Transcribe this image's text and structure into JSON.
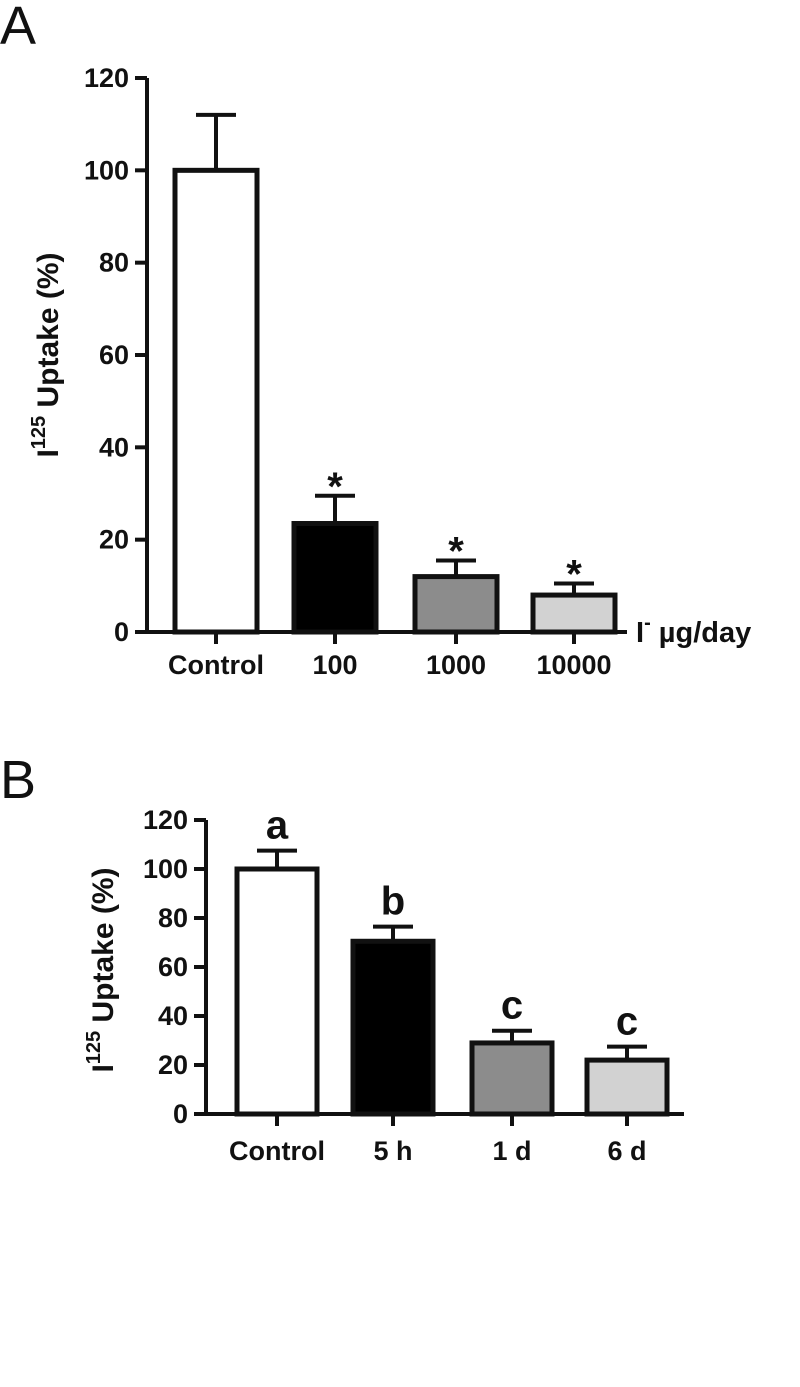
{
  "chart_data": [
    {
      "panel": "A",
      "type": "bar",
      "ylabel": {
        "base": "I",
        "sup": "125",
        "rest": " Uptake (%)"
      },
      "xunit": {
        "base": "I",
        "sup": "-",
        "rest": " µg/day"
      },
      "categories": [
        "Control",
        "100",
        "1000",
        "10000"
      ],
      "values": [
        100,
        23.5,
        12,
        8
      ],
      "errors": [
        12,
        6,
        3.5,
        2.5
      ],
      "annotations": [
        "",
        "*",
        "*",
        "*"
      ],
      "fills": [
        "#ffffff",
        "#000000",
        "#8c8c8c",
        "#d2d2d2"
      ],
      "ylim": [
        0,
        120
      ],
      "yticks": [
        "0",
        "20",
        "40",
        "60",
        "80",
        "100",
        "120"
      ],
      "grid": false
    },
    {
      "panel": "B",
      "type": "bar",
      "ylabel": {
        "base": "I",
        "sup": "125",
        "rest": " Uptake (%)"
      },
      "categories": [
        "Control",
        "5 h",
        "1 d",
        "6 d"
      ],
      "values": [
        100,
        70.5,
        29,
        22
      ],
      "errors": [
        7.5,
        6,
        5,
        5.5
      ],
      "annotations": [
        "a",
        "b",
        "c",
        "c"
      ],
      "fills": [
        "#ffffff",
        "#000000",
        "#8c8c8c",
        "#d2d2d2"
      ],
      "ylim": [
        0,
        120
      ],
      "yticks": [
        "0",
        "20",
        "40",
        "60",
        "80",
        "100",
        "120"
      ],
      "grid": false
    }
  ]
}
